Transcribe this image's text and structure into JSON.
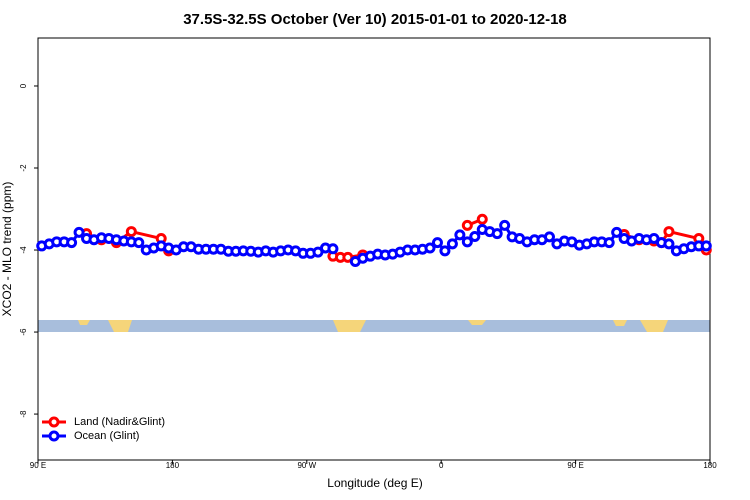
{
  "chart_data": {
    "type": "line",
    "title": "37.5S-32.5S October (Ver 10)   2015-01-01 to 2020-12-18",
    "x_label": "Longitude (deg E)",
    "y_label": "XCO2 - MLO trend (ppm)",
    "xlim": [
      90,
      540
    ],
    "ylim": [
      -9.12,
      1.17
    ],
    "xticks": [
      {
        "value": 90,
        "label": "90 E"
      },
      180,
      {
        "value": 270,
        "label": "90 W"
      },
      {
        "value": 360,
        "label": "0"
      },
      {
        "value": 450,
        "label": "90 E"
      },
      {
        "value": 540,
        "label": "180"
      }
    ],
    "yticks": [
      0,
      -2,
      -4,
      -6,
      -8
    ],
    "legend": "bottom-left",
    "series": [
      {
        "name": "Land (Nadir&Glint)",
        "color": "#ff0000",
        "x": [
          122.5,
          132.5,
          142.5,
          152.5,
          172.5,
          177.5,
          null,
          287.5,
          292.5,
          297.5,
          307.5,
          null,
          377.5,
          387.5,
          null,
          482.5,
          492.5,
          502.5,
          507.5,
          512.5,
          532.5,
          537.5
        ],
        "values": [
          -3.6,
          -3.75,
          -3.82,
          -3.55,
          -3.72,
          -4.02,
          null,
          -4.15,
          -4.18,
          -4.18,
          -4.12,
          null,
          -3.4,
          -3.25,
          null,
          -3.62,
          -3.75,
          -3.78,
          -3.82,
          -3.55,
          -3.72,
          -4.0
        ]
      },
      {
        "name": "Ocean (Glint)",
        "color": "#0000ff",
        "x": [
          92.5,
          97.5,
          102.5,
          107.5,
          112.5,
          117.5,
          122.5,
          127.5,
          132.5,
          137.5,
          142.5,
          147.5,
          152.5,
          157.5,
          162.5,
          167.5,
          172.5,
          177.5,
          182.5,
          187.5,
          192.5,
          197.5,
          202.5,
          207.5,
          212.5,
          217.5,
          222.5,
          227.5,
          232.5,
          237.5,
          242.5,
          247.5,
          252.5,
          257.5,
          262.5,
          267.5,
          272.5,
          277.5,
          282.5,
          287.5,
          null,
          null,
          302.5,
          307.5,
          312.5,
          317.5,
          322.5,
          327.5,
          332.5,
          337.5,
          342.5,
          347.5,
          352.5,
          357.5,
          362.5,
          367.5,
          372.5,
          377.5,
          382.5,
          387.5,
          392.5,
          397.5,
          402.5,
          407.5,
          412.5,
          417.5,
          422.5,
          427.5,
          432.5,
          437.5,
          442.5,
          447.5,
          452.5,
          457.5,
          462.5,
          467.5,
          472.5,
          477.5,
          482.5,
          487.5,
          492.5,
          497.5,
          502.5,
          507.5,
          512.5,
          517.5,
          522.5,
          527.5,
          532.5,
          537.5
        ],
        "values": [
          -3.9,
          -3.85,
          -3.8,
          -3.8,
          -3.82,
          -3.57,
          -3.72,
          -3.75,
          -3.7,
          -3.72,
          -3.75,
          -3.78,
          -3.8,
          -3.82,
          -4.0,
          -3.95,
          -3.9,
          -3.95,
          -4.0,
          -3.92,
          -3.92,
          -3.98,
          -3.98,
          -3.98,
          -3.98,
          -4.03,
          -4.03,
          -4.02,
          -4.03,
          -4.05,
          -4.02,
          -4.05,
          -4.02,
          -4.0,
          -4.02,
          -4.08,
          -4.08,
          -4.05,
          -3.95,
          -3.97,
          null,
          null,
          -4.28,
          -4.2,
          -4.15,
          -4.1,
          -4.12,
          -4.1,
          -4.05,
          -4.0,
          -4.0,
          -3.98,
          -3.95,
          -3.82,
          -4.02,
          -3.85,
          -3.63,
          -3.8,
          -3.67,
          -3.5,
          -3.55,
          -3.6,
          -3.4,
          -3.68,
          -3.72,
          -3.8,
          -3.75,
          -3.75,
          -3.68,
          -3.85,
          -3.78,
          -3.8,
          -3.88,
          -3.85,
          -3.8,
          -3.8,
          -3.82,
          -3.57,
          -3.72,
          -3.78,
          -3.72,
          -3.75,
          -3.72,
          -3.82,
          -3.85,
          -4.02,
          -3.97,
          -3.92,
          -3.9,
          -3.9
        ]
      }
    ]
  }
}
